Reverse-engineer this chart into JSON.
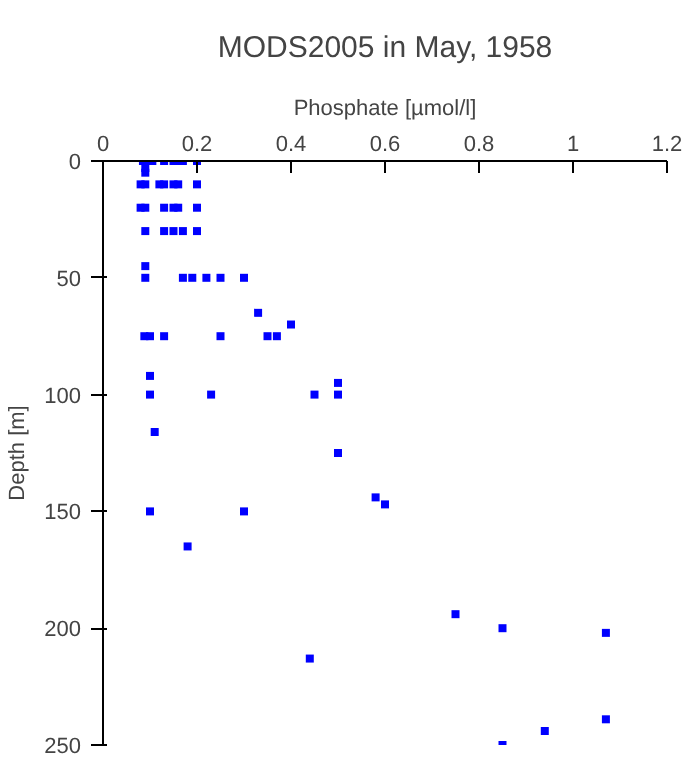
{
  "chart_data": {
    "type": "scatter",
    "title": "MODS2005 in May, 1958",
    "xlabel": "Phosphate [µmol/l]",
    "ylabel": "Depth [m]",
    "x": [
      0.085,
      0.095,
      0.105,
      0.13,
      0.15,
      0.16,
      0.17,
      0.2,
      0.09,
      0.09,
      0.08,
      0.09,
      0.12,
      0.13,
      0.15,
      0.16,
      0.2,
      0.08,
      0.09,
      0.13,
      0.15,
      0.16,
      0.2,
      0.09,
      0.13,
      0.15,
      0.17,
      0.2,
      0.09,
      0.09,
      0.17,
      0.19,
      0.22,
      0.25,
      0.3,
      0.33,
      0.4,
      0.088,
      0.1,
      0.13,
      0.25,
      0.35,
      0.37,
      0.1,
      0.5,
      0.1,
      0.23,
      0.45,
      0.5,
      0.11,
      0.5,
      0.58,
      0.6,
      0.1,
      0.3,
      0.18,
      0.75,
      0.44,
      0.85,
      1.07,
      1.07,
      0.94,
      0.85
    ],
    "values": [
      0,
      0,
      0,
      0,
      0,
      0,
      0,
      0,
      3,
      5,
      10,
      10,
      10,
      10,
      10,
      10,
      10,
      20,
      20,
      20,
      20,
      20,
      20,
      30,
      30,
      30,
      30,
      30,
      45,
      50,
      50,
      50,
      50,
      50,
      50,
      65,
      70,
      75,
      75,
      75,
      75,
      75,
      75,
      92,
      95,
      100,
      100,
      100,
      100,
      116,
      125,
      144,
      147,
      150,
      150,
      165,
      194,
      213,
      200,
      202,
      239,
      244,
      250
    ],
    "color": "#0000ff",
    "marker": "square",
    "xlim": [
      0,
      1.2
    ],
    "xticks": [
      0,
      0.2,
      0.4,
      0.6,
      0.8,
      1,
      1.2
    ],
    "ylim": [
      250,
      0
    ],
    "yticks": [
      0,
      50,
      100,
      150,
      200,
      250
    ],
    "grid": false
  }
}
